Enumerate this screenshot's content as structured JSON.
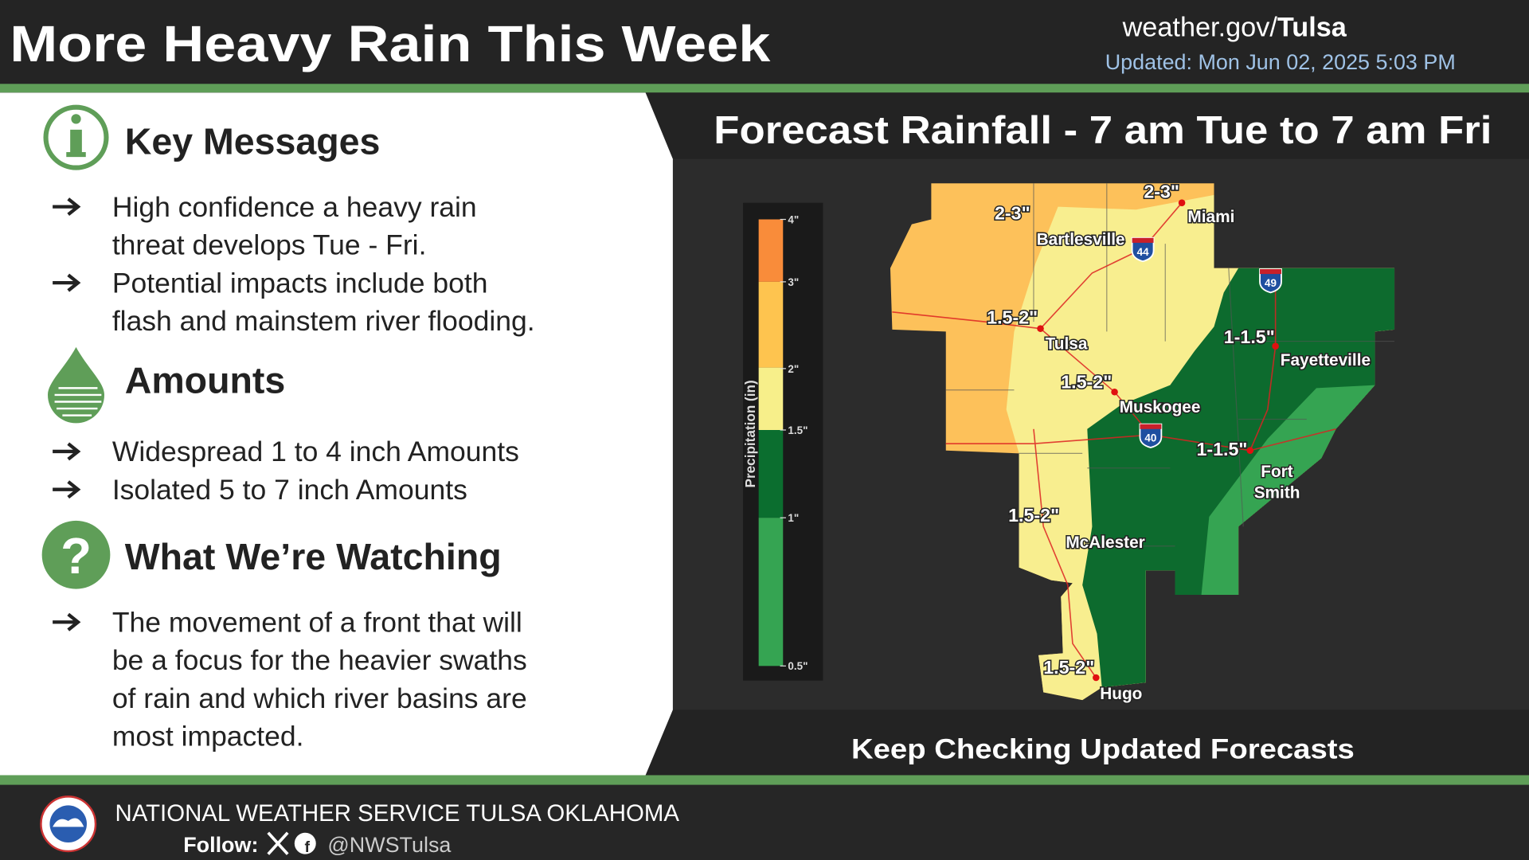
{
  "header": {
    "title": "More Heavy Rain This Week",
    "site_prefix": "weather.gov/",
    "site_office": "Tulsa",
    "updated": "Updated: Mon Jun 02, 2025 5:03 PM"
  },
  "sections": [
    {
      "heading": "Key Messages",
      "bullets": [
        [
          "High confidence a heavy rain",
          "threat develops Tue - Fri."
        ],
        [
          "Potential impacts include both",
          "flash and mainstem river flooding."
        ]
      ]
    },
    {
      "heading": "Amounts",
      "bullets": [
        [
          "Widespread 1 to 4 inch Amounts"
        ],
        [
          "Isolated 5 to 7 inch Amounts"
        ]
      ]
    },
    {
      "heading": "What We’re Watching",
      "bullets": [
        [
          "The movement of a front that will",
          "be a focus for the heavier swaths",
          "of rain and which river basins are",
          "most impacted."
        ]
      ]
    }
  ],
  "map": {
    "title": "Forecast Rainfall - 7 am Tue to 7 am Fri",
    "legend_label": "Precipitation (in)",
    "legend_ticks": [
      "4\"",
      "3\"",
      "2\"",
      "1.5\"",
      "1\"",
      "0.5\""
    ],
    "cities": [
      "Miami",
      "Bartlesville",
      "Tulsa",
      "Muskogee",
      "Fayetteville",
      "Fort",
      "Smith",
      "McAlester",
      "Hugo"
    ],
    "amounts": [
      "2-3\"",
      "2-3\"",
      "1.5-2\"",
      "1-1.5\"",
      "1.5-2\"",
      "1-1.5\"",
      "1.5-2\"",
      "1.5-2\""
    ],
    "shields": [
      "44",
      "49",
      "40"
    ],
    "footer_note": "Keep Checking Updated Forecasts"
  },
  "footer": {
    "agency": "NATIONAL WEATHER SERVICE TULSA OKLAHOMA",
    "follow": "Follow:",
    "handle": "@NWSTulsa"
  }
}
